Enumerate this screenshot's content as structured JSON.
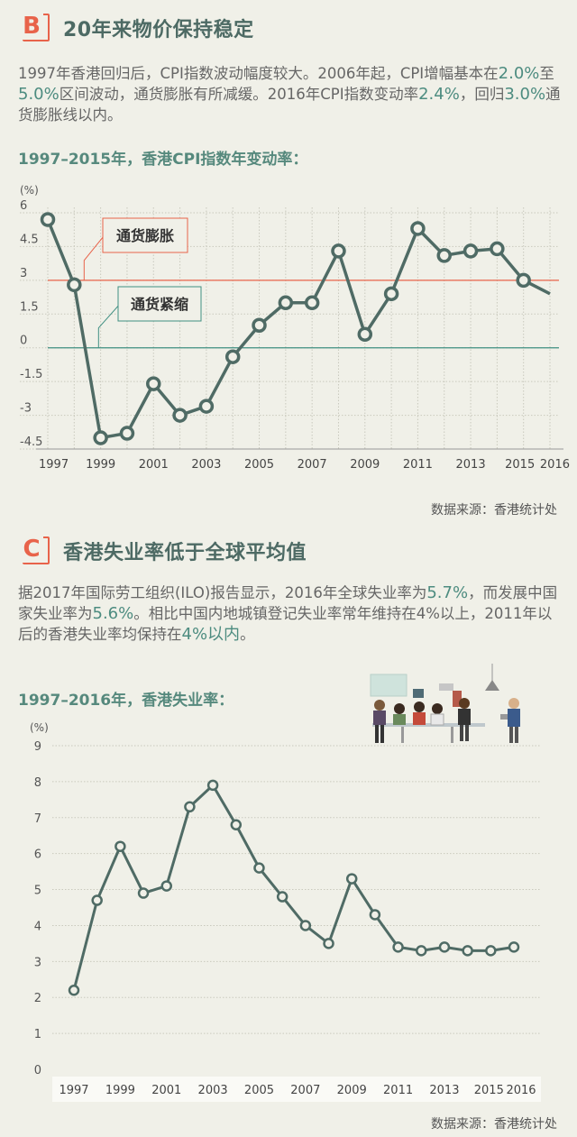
{
  "sectionB": {
    "badge": "B",
    "title": "20年来物价保持稳定",
    "para": [
      {
        "t": "1997年香港回归后，CPI指数波动幅度较大。2006年起，CPI增幅基本在"
      },
      {
        "t": "2.0%",
        "hl": true
      },
      {
        "t": "至"
      },
      {
        "t": "5.0%",
        "hl": true
      },
      {
        "t": "区间波动，通货膨胀有所减缓。2016年CPI指数变动率"
      },
      {
        "t": "2.4%",
        "hl": true
      },
      {
        "t": "，回归"
      },
      {
        "t": "3.0%",
        "hl": true
      },
      {
        "t": "通货膨胀线以内。"
      }
    ],
    "chart_title": "1997–2015年，香港CPI指数年变动率：",
    "source": "数据来源：香港统计处"
  },
  "sectionC": {
    "badge": "C",
    "title": "香港失业率低于全球平均值",
    "para": [
      {
        "t": "据2017年国际劳工组织(ILO)报告显示，2016年全球失业率为"
      },
      {
        "t": "5.7%",
        "hl": true
      },
      {
        "t": "，而发展中国家失业率为"
      },
      {
        "t": "5.6%",
        "hl": true
      },
      {
        "t": "。相比中国内地城镇登记失业率常年维持在4%以上，2011年以后的香港失业率均保持在"
      },
      {
        "t": "4%以内",
        "hl": true
      },
      {
        "t": "。"
      }
    ],
    "chart_title": "1997–2016年，香港失业率：",
    "source": "数据来源：香港统计处"
  },
  "colors": {
    "accent": "#e8634a",
    "line": "#4f6b65",
    "grid": "#c9c9bd",
    "teal": "#4d8c80",
    "inflation": "#e8634a",
    "deflation": "#3f8f82"
  },
  "chart_data": [
    {
      "type": "line",
      "unit_label": "(%)",
      "x": [
        1997,
        1998,
        1999,
        2000,
        2001,
        2002,
        2003,
        2004,
        2005,
        2006,
        2007,
        2008,
        2009,
        2010,
        2011,
        2012,
        2013,
        2014,
        2015,
        2016
      ],
      "values": [
        5.7,
        2.8,
        -4.0,
        -3.8,
        -1.6,
        -3.0,
        -2.6,
        -0.4,
        1.0,
        2.0,
        2.0,
        4.3,
        0.6,
        2.4,
        5.3,
        4.1,
        4.3,
        4.4,
        3.0,
        2.4
      ],
      "xticks": [
        "1997",
        "1999",
        "2001",
        "2003",
        "2005",
        "2007",
        "2009",
        "2011",
        "2013",
        "2015",
        "2016"
      ],
      "yticks": [
        "6",
        "4.5",
        "3",
        "1.5",
        "0",
        "-1.5",
        "-3",
        "-4.5"
      ],
      "ylim": [
        -4.5,
        6
      ],
      "reference_lines": [
        {
          "value": 3,
          "label": "通货膨胀"
        },
        {
          "value": 0,
          "label": "通货紧缩"
        }
      ]
    },
    {
      "type": "line",
      "unit_label": "(%)",
      "x": [
        1997,
        1998,
        1999,
        2000,
        2001,
        2002,
        2003,
        2004,
        2005,
        2006,
        2007,
        2008,
        2009,
        2010,
        2011,
        2012,
        2013,
        2014,
        2015,
        2016
      ],
      "values": [
        2.2,
        4.7,
        6.2,
        4.9,
        5.1,
        7.3,
        7.9,
        6.8,
        5.6,
        4.8,
        4.0,
        3.5,
        5.3,
        4.3,
        3.4,
        3.3,
        3.4,
        3.3,
        3.3,
        3.4
      ],
      "xticks": [
        "1997",
        "1999",
        "2001",
        "2003",
        "2005",
        "2007",
        "2009",
        "2011",
        "2013",
        "2015",
        "2016"
      ],
      "yticks": [
        "9",
        "8",
        "7",
        "6",
        "5",
        "4",
        "3",
        "2",
        "1",
        "0"
      ],
      "ylim": [
        0,
        9
      ]
    }
  ]
}
